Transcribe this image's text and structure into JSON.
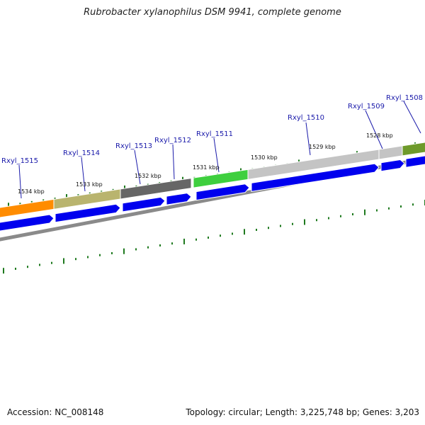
{
  "title": "Rubrobacter xylanophilus DSM 9941, complete genome",
  "accession": "Accession: NC_008148",
  "summary": "Topology: circular; Length: 3,225,748 bp; Genes: 3,203",
  "colors": {
    "tick": "#1f7a1f",
    "cds": "#0000ee",
    "backbone": "#8a8a8a",
    "gene_label": "#1a1aaa"
  },
  "kbp_labels": [
    "1528 kbp",
    "1529 kbp",
    "1530 kbp",
    "1531 kbp",
    "1532 kbp",
    "1533 kbp",
    "1534 kbp"
  ],
  "gene_labels": [
    "Rxyl_1508",
    "Rxyl_1509",
    "Rxyl_1510",
    "Rxyl_1511",
    "Rxyl_1512",
    "Rxyl_1513",
    "Rxyl_1514",
    "Rxyl_1515"
  ],
  "feature_colors": [
    "#ff8c00",
    "#b9b46e",
    "#666666",
    "#3ecf3e",
    "#c4c4c4",
    "#c4c4c4",
    "#6e9a2a"
  ]
}
